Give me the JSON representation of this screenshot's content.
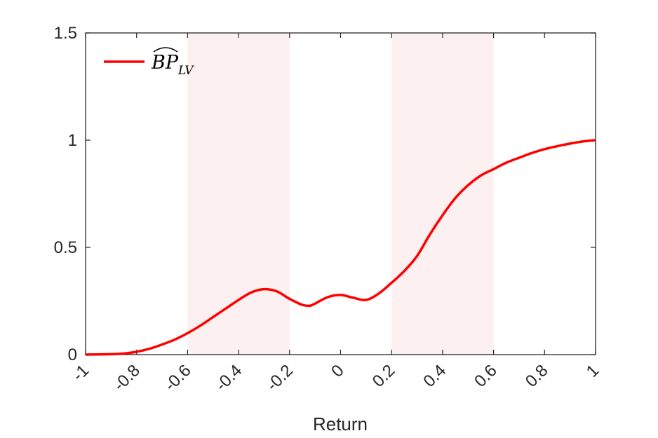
{
  "chart_data": {
    "type": "line",
    "title": "",
    "xlabel": "Return",
    "ylabel": "",
    "xlim": [
      -1,
      1
    ],
    "ylim": [
      0,
      1.5
    ],
    "xticks": [
      -1,
      -0.8,
      -0.6,
      -0.4,
      -0.2,
      0,
      0.2,
      0.4,
      0.6,
      0.8,
      1
    ],
    "xtick_labels": [
      "-1",
      "-0.8",
      "-0.6",
      "-0.4",
      "-0.2",
      "0",
      "0.2",
      "0.4",
      "0.6",
      "0.8",
      "1"
    ],
    "yticks": [
      0,
      0.5,
      1,
      1.5
    ],
    "ytick_labels": [
      "0",
      "0.5",
      "1",
      "1.5"
    ],
    "grid": false,
    "legend_position": "top-left",
    "shaded_regions": [
      {
        "x_start": -0.6,
        "x_end": -0.2,
        "color": "#fdf0f0"
      },
      {
        "x_start": 0.2,
        "x_end": 0.6,
        "color": "#fdf0f0"
      }
    ],
    "series": [
      {
        "name": "BP",
        "name_subscript": "LV",
        "color": "#ff0000",
        "x": [
          -1.0,
          -0.9,
          -0.85,
          -0.8,
          -0.75,
          -0.7,
          -0.65,
          -0.6,
          -0.55,
          -0.5,
          -0.45,
          -0.4,
          -0.35,
          -0.3,
          -0.25,
          -0.2,
          -0.15,
          -0.12,
          -0.1,
          -0.05,
          0.0,
          0.05,
          0.1,
          0.15,
          0.2,
          0.25,
          0.3,
          0.35,
          0.4,
          0.45,
          0.5,
          0.55,
          0.6,
          0.65,
          0.7,
          0.75,
          0.8,
          0.85,
          0.9,
          0.95,
          1.0
        ],
        "y": [
          0.0,
          0.002,
          0.005,
          0.013,
          0.027,
          0.047,
          0.07,
          0.1,
          0.135,
          0.175,
          0.215,
          0.255,
          0.29,
          0.305,
          0.295,
          0.26,
          0.232,
          0.228,
          0.238,
          0.268,
          0.278,
          0.265,
          0.255,
          0.285,
          0.335,
          0.39,
          0.46,
          0.56,
          0.65,
          0.73,
          0.79,
          0.835,
          0.865,
          0.895,
          0.918,
          0.94,
          0.958,
          0.972,
          0.984,
          0.994,
          1.0
        ]
      }
    ]
  }
}
